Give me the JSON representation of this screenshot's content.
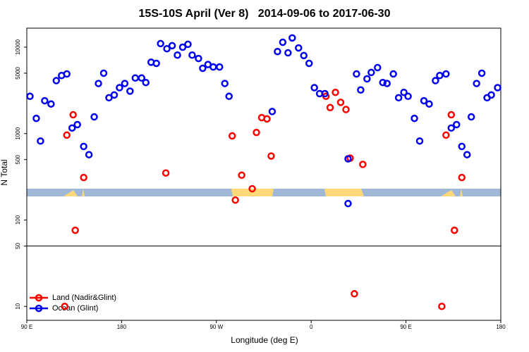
{
  "chart_data": {
    "type": "scatter",
    "title": "15S-10S April (Ver 8)   2014-09-06 to 2017-06-30",
    "x_label": "Longitude (deg E)",
    "y_label": "N Total",
    "log_y": true,
    "xlim": [
      90,
      540
    ],
    "xticks": [
      {
        "value": 90,
        "label": "90 E"
      },
      180,
      {
        "value": 270,
        "label": "90 W"
      },
      {
        "value": 360,
        "label": "0"
      },
      {
        "value": 450,
        "label": "90 E"
      },
      {
        "value": 540,
        "label": "180"
      }
    ],
    "ylim": [
      6.9,
      16600
    ],
    "yticks": [
      10,
      50,
      100,
      500,
      1000,
      5000,
      10000
    ],
    "reference_line": 50,
    "legend": "bottom-left",
    "series": [
      {
        "name": "Land (Nadir&Glint)",
        "color": "#ff0000",
        "x": [
          128,
          134,
          136,
          144,
          222,
          285,
          288,
          294,
          304,
          308,
          313,
          318,
          322,
          374,
          378,
          383,
          388,
          393,
          397,
          401,
          409,
          126,
          484,
          488,
          493,
          496,
          503
        ],
        "values": [
          960,
          1650,
          76,
          310,
          350,
          940,
          170,
          330,
          230,
          1030,
          1530,
          1480,
          550,
          2700,
          2000,
          3000,
          2300,
          1900,
          520,
          14,
          440,
          10,
          10,
          960,
          1650,
          76,
          310
        ]
      },
      {
        "name": "Ocean (Glint)",
        "color": "#0000ee",
        "x": [
          93,
          99,
          103,
          107,
          113,
          118,
          123,
          128,
          133,
          138,
          144,
          149,
          154,
          158,
          163,
          168,
          173,
          178,
          183,
          188,
          193,
          199,
          203,
          208,
          213,
          217,
          223,
          228,
          233,
          238,
          243,
          247,
          253,
          257,
          262,
          267,
          273,
          278,
          282,
          323,
          328,
          333,
          338,
          342,
          348,
          353,
          358,
          363,
          368,
          373,
          395,
          395,
          403,
          407,
          413,
          417,
          423,
          428,
          432,
          438,
          443,
          448,
          452,
          458,
          463,
          467,
          472,
          478,
          482,
          488,
          493,
          498,
          503,
          508,
          512,
          517,
          522,
          527,
          531,
          537
        ],
        "values": [
          2700,
          1500,
          820,
          2400,
          2200,
          4100,
          4700,
          4900,
          1160,
          1270,
          710,
          570,
          1560,
          3800,
          5000,
          2600,
          2800,
          3400,
          3800,
          3100,
          4400,
          4400,
          3900,
          6700,
          6500,
          11000,
          9600,
          10400,
          8100,
          10000,
          10800,
          8100,
          7400,
          5700,
          6300,
          5900,
          5900,
          3800,
          2700,
          1800,
          8900,
          11400,
          8600,
          12800,
          9800,
          8000,
          6500,
          3400,
          2900,
          2900,
          510,
          155,
          4900,
          3200,
          4300,
          5100,
          5800,
          3900,
          3800,
          4900,
          2600,
          3000,
          2700,
          1500,
          820,
          2400,
          2200,
          4100,
          4700,
          4900,
          1160,
          1270,
          710,
          570,
          1560,
          3800,
          5000,
          2600,
          2800,
          3400
        ]
      }
    ]
  }
}
